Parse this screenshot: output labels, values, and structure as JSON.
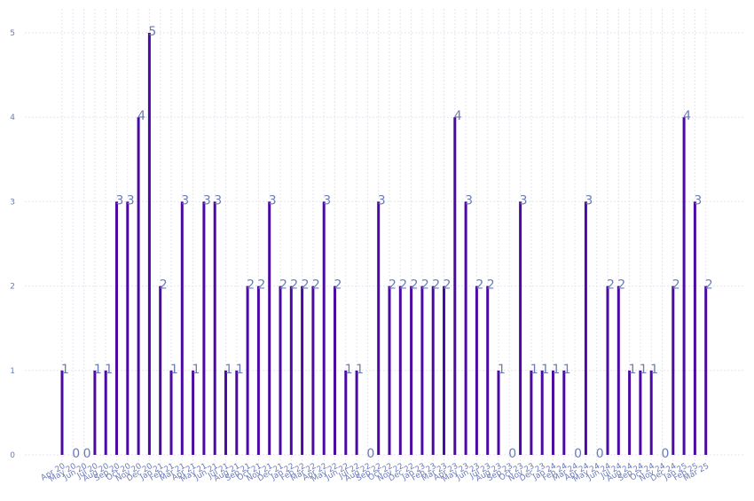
{
  "chart_data": {
    "type": "bar",
    "title": "",
    "xlabel": "",
    "ylabel": "",
    "ylim": [
      0,
      5
    ],
    "yticks": [
      0,
      1,
      2,
      3,
      4,
      5
    ],
    "grid": true,
    "bar_color": "#4a0aa3",
    "label_color": "#6b7bb8",
    "categories": [
      "Apr 20",
      "May 20",
      "Jun 20",
      "Jul 20",
      "Aug 20",
      "Sep 20",
      "Oct 20",
      "Nov 20",
      "Dec 20",
      "Jan 21",
      "Feb 21",
      "Mar 21",
      "Apr 21",
      "May 21",
      "Jun 21",
      "Jul 21",
      "Aug 21",
      "Sep 21",
      "Oct 21",
      "Nov 21",
      "Dec 21",
      "Jan 22",
      "Feb 22",
      "Mar 22",
      "Apr 22",
      "May 22",
      "Jun 22",
      "Jul 22",
      "Aug 22",
      "Sep 22",
      "Oct 22",
      "Nov 22",
      "Dec 22",
      "Jan 23",
      "Feb 23",
      "Mar 23",
      "Apr 23",
      "May 23",
      "Jun 23",
      "Jul 23",
      "Aug 23",
      "Sep 23",
      "Oct 23",
      "Nov 23",
      "Dec 23",
      "Jan 24",
      "Feb 24",
      "Mar 24",
      "Apr 24",
      "May 24",
      "Jun 24",
      "Jul 24",
      "Aug 24",
      "Sep 24",
      "Oct 24",
      "Nov 24",
      "Dec 24",
      "Jan 25",
      "Feb 25",
      "Mar 25"
    ],
    "values": [
      1,
      0,
      0,
      1,
      1,
      3,
      3,
      4,
      5,
      2,
      1,
      3,
      1,
      3,
      3,
      1,
      1,
      2,
      2,
      3,
      2,
      2,
      2,
      2,
      3,
      2,
      1,
      1,
      0,
      3,
      2,
      2,
      2,
      2,
      2,
      2,
      4,
      3,
      2,
      2,
      1,
      0,
      3,
      1,
      1,
      1,
      1,
      0,
      3,
      0,
      2,
      2,
      1,
      1,
      1,
      0,
      2,
      4,
      3,
      2
    ]
  }
}
